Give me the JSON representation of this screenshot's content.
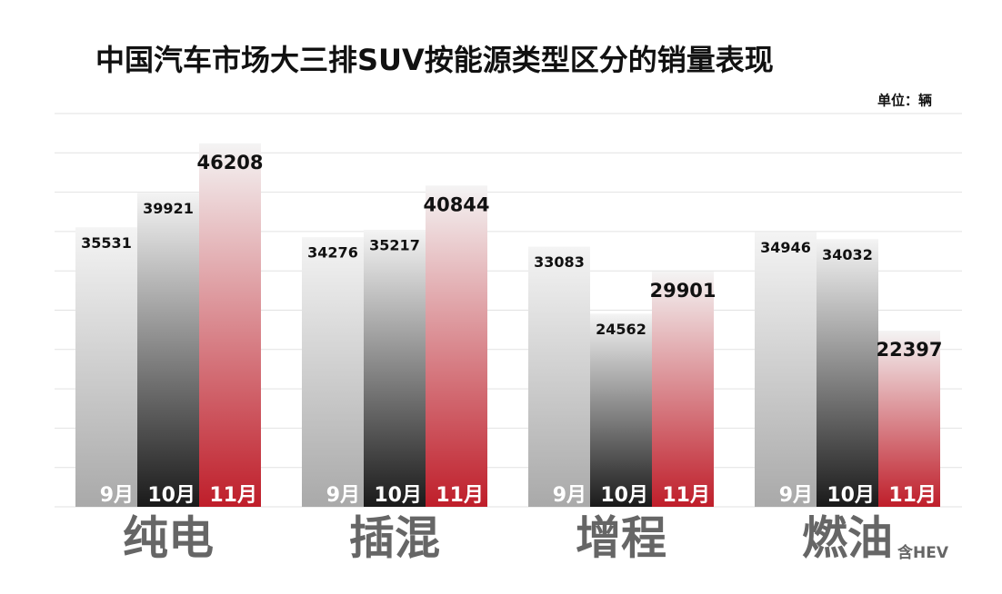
{
  "chart_data": {
    "type": "bar",
    "title": "中国汽车市场大三排SUV按能源类型区分的销量表现",
    "unit_label": "单位：辆",
    "annotation": "含HEV",
    "categories": [
      "纯电",
      "插混",
      "增程",
      "燃油"
    ],
    "series": [
      {
        "name": "9月",
        "color": "#a9a9a9",
        "values": [
          35531,
          34276,
          33083,
          34946
        ]
      },
      {
        "name": "10月",
        "color": "#1a1a1a",
        "values": [
          39921,
          35217,
          24562,
          34032
        ]
      },
      {
        "name": "11月",
        "color": "#bf1e2a",
        "values": [
          46208,
          40844,
          29901,
          22397
        ]
      }
    ],
    "ylim": [
      0,
      50000
    ],
    "yticks": [
      0,
      5000,
      10000,
      15000,
      20000,
      25000,
      30000,
      35000,
      40000,
      45000,
      50000
    ],
    "grid": true
  }
}
